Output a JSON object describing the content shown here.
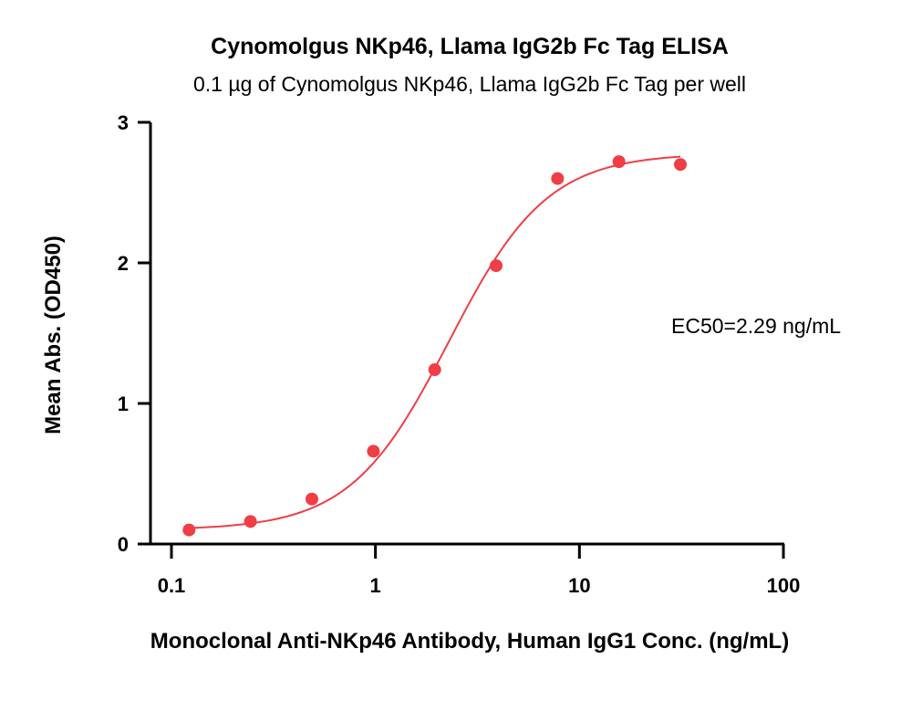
{
  "chart_data": {
    "type": "scatter",
    "title": "Cynomolgus NKp46, Llama IgG2b Fc Tag ELISA",
    "subtitle": "0.1 µg of Cynomolgus NKp46, Llama IgG2b Fc Tag per well",
    "xlabel": "Monoclonal Anti-NKp46 Antibody, Human IgG1 Conc. (ng/mL)",
    "ylabel": "Mean Abs. (OD450)",
    "x_scale": "log",
    "xlim": [
      0.08,
      100
    ],
    "ylim": [
      0,
      3
    ],
    "x_ticks": [
      0.1,
      1,
      10,
      100
    ],
    "x_tick_labels": [
      "0.1",
      "1",
      "10",
      "100"
    ],
    "y_ticks": [
      0,
      1,
      2,
      3
    ],
    "y_tick_labels": [
      "0",
      "1",
      "2",
      "3"
    ],
    "grid": false,
    "series": [
      {
        "x": [
          0.122,
          0.244,
          0.488,
          0.977,
          1.953,
          3.906,
          7.813,
          15.625,
          31.25
        ],
        "y": [
          0.1,
          0.16,
          0.32,
          0.66,
          1.24,
          1.98,
          2.6,
          2.72,
          2.7
        ],
        "color": "#ef3e45"
      }
    ],
    "fit": {
      "model": "4PL",
      "bottom": 0.1,
      "top": 2.78,
      "ec50": 2.29,
      "hill": 1.8,
      "x_range": [
        0.122,
        31.25
      ],
      "color": "#ef3e45"
    },
    "annotations": [
      {
        "text": "EC50=2.29 ng/mL"
      }
    ]
  }
}
